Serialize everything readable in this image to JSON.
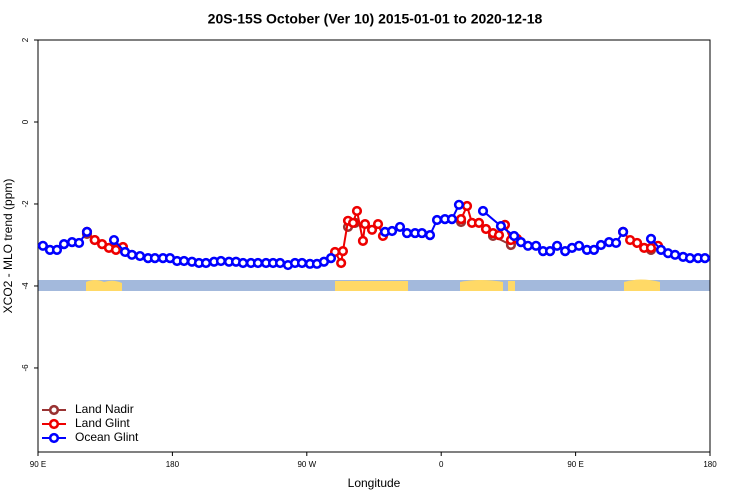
{
  "chart_data": {
    "type": "line",
    "title": "20S-15S October (Ver 10)   2015-01-01 to 2020-12-18",
    "x_label": "Longitude",
    "y_label": "XCO2 - MLO trend (ppm)",
    "xlim": [
      90,
      540
    ],
    "ylim": [
      -8.05,
      2
    ],
    "xticks": [
      {
        "value": 90,
        "label": "90 E"
      },
      180,
      {
        "value": 270,
        "label": "90 W"
      },
      {
        "value": 360,
        "label": "0"
      },
      {
        "value": 450,
        "label": "90 E"
      },
      {
        "value": 540,
        "label": "180"
      }
    ],
    "yticks": [
      2,
      0,
      -2,
      -4,
      -6
    ],
    "legend": "bottom-left",
    "series": [
      {
        "name": "Land Nadir",
        "color": "#993333",
        "x": [
          122.8,
          128,
          142.2,
          297.6,
          302.3,
          373.3,
          394.7,
          406.7,
          500.5
        ],
        "values": [
          -2.73,
          -2.88,
          -3.07,
          -2.56,
          -2.46,
          -2.44,
          -2.78,
          -3.0,
          -3.12
        ]
      },
      {
        "name": "Land Glint",
        "color": "#ee0000",
        "x": [
          122.8,
          128,
          132.9,
          137.5,
          142.2,
          146.9,
          288.9,
          293,
          294.2,
          297.6,
          301,
          303.6,
          307.6,
          309,
          313.7,
          317.7,
          321,
          373.3,
          377.3,
          380.6,
          385.3,
          390,
          394.7,
          398.7,
          402.7,
          406.7,
          410.8,
          481.8,
          486.5,
          491.2,
          495.9,
          500.5,
          505.2
        ],
        "values": [
          -2.68,
          -2.88,
          -2.98,
          -3.07,
          -3.12,
          -3.05,
          -3.17,
          -3.44,
          -3.15,
          -2.41,
          -2.46,
          -2.17,
          -2.9,
          -2.49,
          -2.63,
          -2.49,
          -2.78,
          -2.37,
          -2.05,
          -2.46,
          -2.46,
          -2.61,
          -2.71,
          -2.76,
          -2.51,
          -2.88,
          -2.85,
          -2.68,
          -2.88,
          -2.95,
          -3.07,
          -3.07,
          -3.02
        ]
      },
      {
        "name": "Ocean Glint",
        "color": "#0000ff",
        "x": [
          93.3,
          98,
          102.7,
          107.4,
          112.8,
          117.5,
          122.8,
          140.9,
          148.3,
          152.9,
          158.3,
          163.7,
          168.3,
          173.7,
          178.4,
          183.1,
          187.8,
          193.1,
          197.8,
          202.5,
          207.9,
          212.5,
          217.9,
          222.6,
          227.3,
          232.6,
          237.3,
          242.7,
          247.4,
          252.1,
          257.4,
          262.1,
          266.8,
          272.1,
          276.8,
          281.5,
          286.2,
          322.4,
          327.1,
          332.4,
          337.1,
          342.5,
          347.1,
          352.5,
          357.2,
          362.5,
          367.2,
          371.9,
          388,
          400,
          408.8,
          413.4,
          418.1,
          423.5,
          428.2,
          432.9,
          437.6,
          443,
          447.6,
          452.3,
          457.6,
          462.3,
          467,
          472.4,
          477.1,
          481.8,
          500.5,
          507.2,
          511.9,
          516.6,
          522,
          526.6,
          532,
          536.6
        ],
        "values": [
          -3.02,
          -3.12,
          -3.12,
          -2.98,
          -2.93,
          -2.95,
          -2.68,
          -2.88,
          -3.17,
          -3.24,
          -3.27,
          -3.32,
          -3.32,
          -3.32,
          -3.32,
          -3.39,
          -3.39,
          -3.41,
          -3.44,
          -3.44,
          -3.41,
          -3.39,
          -3.41,
          -3.41,
          -3.44,
          -3.44,
          -3.44,
          -3.44,
          -3.44,
          -3.44,
          -3.49,
          -3.44,
          -3.44,
          -3.46,
          -3.46,
          -3.41,
          -3.32,
          -2.68,
          -2.66,
          -2.56,
          -2.71,
          -2.71,
          -2.71,
          -2.76,
          -2.39,
          -2.37,
          -2.37,
          -2.02,
          -2.17,
          -2.54,
          -2.78,
          -2.93,
          -3.02,
          -3.02,
          -3.15,
          -3.15,
          -3.02,
          -3.15,
          -3.07,
          -3.02,
          -3.12,
          -3.12,
          -3.0,
          -2.93,
          -2.95,
          -2.68,
          -2.85,
          -3.12,
          -3.2,
          -3.24,
          -3.29,
          -3.32,
          -3.32,
          -3.32
        ]
      }
    ]
  }
}
